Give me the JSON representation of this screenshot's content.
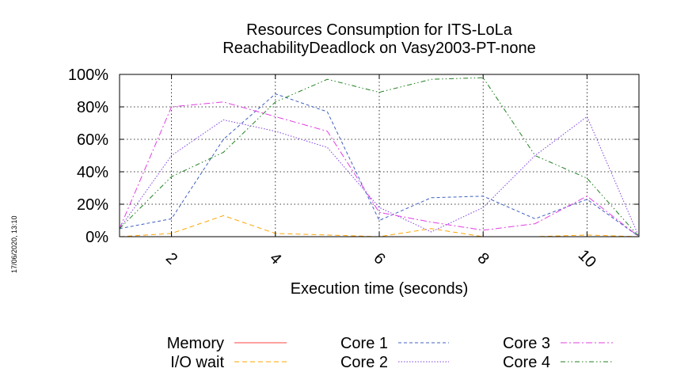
{
  "chart_data": {
    "type": "line",
    "title": [
      "Resources Consumption for ITS-LoLa",
      "ReachabilityDeadlock on Vasy2003-PT-none"
    ],
    "xlabel": "Execution time (seconds)",
    "ylabel": "",
    "xlim": [
      1,
      11
    ],
    "ylim": [
      0,
      100
    ],
    "x_ticks": [
      2,
      4,
      6,
      8,
      10
    ],
    "y_ticks": [
      0,
      20,
      40,
      60,
      80,
      100
    ],
    "y_tick_labels": [
      "0%",
      "20%",
      "40%",
      "60%",
      "80%",
      "100%"
    ],
    "grid": true,
    "legend_position": "bottom",
    "series": [
      {
        "name": "Memory",
        "color": "#ff4040",
        "dash": "solid",
        "x": [
          1,
          2,
          3,
          4,
          5,
          6,
          7,
          8,
          9,
          10,
          11
        ],
        "y": [
          0,
          0,
          0,
          0,
          0,
          0,
          0,
          0,
          0,
          0,
          0
        ]
      },
      {
        "name": "I/O wait",
        "color": "#ffa500",
        "dash": "dashed",
        "x": [
          1,
          2,
          3,
          4,
          5,
          6,
          7,
          8,
          9,
          10,
          11
        ],
        "y": [
          0,
          2,
          13,
          2,
          1,
          0,
          5,
          0,
          0,
          1,
          0
        ]
      },
      {
        "name": "Core 1",
        "color": "#4060c0",
        "dash": "dashed-fine",
        "x": [
          1,
          2,
          3,
          4,
          5,
          6,
          7,
          8,
          9,
          10,
          11
        ],
        "y": [
          5,
          11,
          60,
          88,
          77,
          10,
          24,
          25,
          11,
          23,
          0
        ]
      },
      {
        "name": "Core 2",
        "color": "#8040e0",
        "dash": "dotted",
        "x": [
          1,
          2,
          3,
          4,
          5,
          6,
          7,
          8,
          9,
          10,
          11
        ],
        "y": [
          5,
          50,
          72,
          65,
          55,
          18,
          3,
          18,
          50,
          74,
          0
        ]
      },
      {
        "name": "Core 3",
        "color": "#e040e0",
        "dash": "dash-dot",
        "x": [
          1,
          2,
          3,
          4,
          5,
          6,
          7,
          8,
          9,
          10,
          11
        ],
        "y": [
          5,
          80,
          83,
          74,
          65,
          15,
          9,
          4,
          8,
          25,
          0
        ]
      },
      {
        "name": "Core 4",
        "color": "#208020",
        "dash": "dash-dot-dot",
        "x": [
          1,
          2,
          3,
          4,
          5,
          6,
          7,
          8,
          9,
          10,
          11
        ],
        "y": [
          5,
          37,
          52,
          83,
          97,
          89,
          97,
          98,
          50,
          36,
          0
        ]
      }
    ]
  },
  "timestamp": "17/06/2020, 13:10"
}
